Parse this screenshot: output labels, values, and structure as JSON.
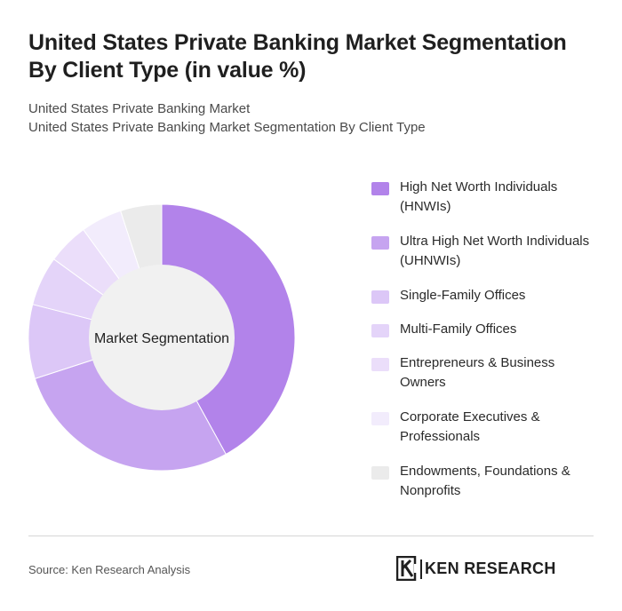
{
  "header": {
    "title": "United States Private Banking Market Segmentation By Client Type (in value %)",
    "subtitle_1": "United States Private Banking Market",
    "subtitle_2": "United States Private Banking Market Segmentation By Client Type"
  },
  "chart_data": {
    "type": "pie",
    "center_label": "Market Segmentation",
    "categories": [
      "High Net Worth Individuals (HNWIs)",
      "Ultra High Net Worth Individuals (UHNWIs)",
      "Single-Family Offices",
      "Multi-Family Offices",
      "Entrepreneurs & Business Owners",
      "Corporate Executives & Professionals",
      "Endowments, Foundations & Nonprofits"
    ],
    "values": [
      42,
      28,
      9,
      6,
      5,
      5,
      5
    ],
    "colors": [
      "#b283ea",
      "#c6a4f0",
      "#dcc7f7",
      "#e4d4f9",
      "#ebdefa",
      "#f2ecfc",
      "#ebebeb"
    ],
    "legend_position": "right"
  },
  "footer": {
    "source": "Source: Ken Research Analysis",
    "logo_text": "KEN RESEARCH"
  }
}
